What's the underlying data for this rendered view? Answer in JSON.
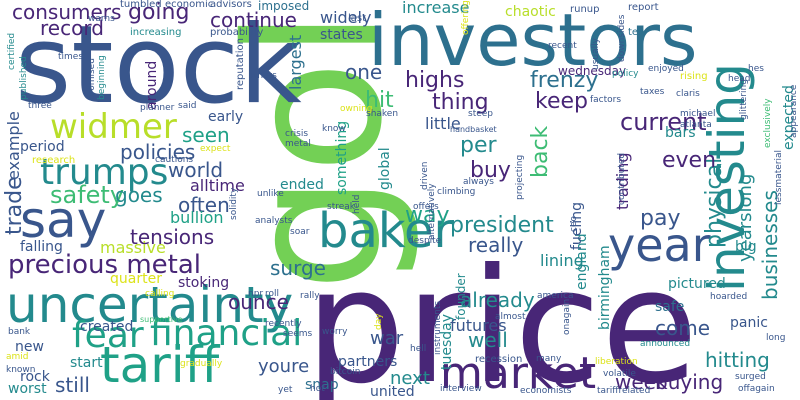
{
  "palette": {
    "dark-purple": "#482677",
    "navy": "#39568c",
    "blue": "#2d708e",
    "teal": "#238a8d",
    "sea-green": "#1fa187",
    "green": "#3dbc74",
    "light-green": "#73d055",
    "yellow-green": "#b8de29",
    "yellow": "#dce319"
  },
  "words": [
    {
      "id": "gold",
      "text": "gold",
      "color": "light-green"
    },
    {
      "id": "price",
      "text": "price",
      "color": "dark-purple"
    },
    {
      "id": "stock",
      "text": "stock",
      "color": "navy"
    },
    {
      "id": "investors",
      "text": "investors",
      "color": "blue"
    },
    {
      "id": "uncertainty",
      "text": "uncertainty",
      "color": "teal"
    },
    {
      "id": "tariff",
      "text": "tariff",
      "color": "sea-green"
    },
    {
      "id": "market",
      "text": "market",
      "color": "dark-purple"
    },
    {
      "id": "investing",
      "text": "investing",
      "color": "teal"
    },
    {
      "id": "baker",
      "text": "baker",
      "color": "teal"
    },
    {
      "id": "year",
      "text": "year",
      "color": "navy"
    },
    {
      "id": "say",
      "text": "say",
      "color": "navy"
    },
    {
      "id": "fear",
      "text": "fear",
      "color": "sea-green"
    },
    {
      "id": "financial",
      "text": "financial",
      "color": "sea-green"
    },
    {
      "id": "widmer",
      "text": "widmer",
      "color": "yellow-green"
    },
    {
      "id": "trumps",
      "text": "trumps",
      "color": "teal"
    },
    {
      "id": "precious-metal",
      "text": "precious metal",
      "color": "dark-purple"
    },
    {
      "id": "safety",
      "text": "safety",
      "color": "green"
    },
    {
      "id": "consumers",
      "text": "consumers",
      "color": "dark-purple"
    },
    {
      "id": "going",
      "text": "going",
      "color": "dark-purple"
    },
    {
      "id": "continue",
      "text": "continue",
      "color": "dark-purple"
    },
    {
      "id": "record",
      "text": "record",
      "color": "dark-purple"
    },
    {
      "id": "current",
      "text": "current",
      "color": "dark-purple"
    },
    {
      "id": "frenzy",
      "text": "frenzy",
      "color": "blue"
    },
    {
      "id": "keep",
      "text": "keep",
      "color": "dark-purple"
    },
    {
      "id": "highs",
      "text": "highs",
      "color": "dark-purple"
    },
    {
      "id": "hit",
      "text": "hit",
      "color": "green"
    },
    {
      "id": "one",
      "text": "one",
      "color": "navy"
    },
    {
      "id": "thing",
      "text": "thing",
      "color": "dark-purple"
    },
    {
      "id": "per",
      "text": "per",
      "color": "teal"
    },
    {
      "id": "back",
      "text": "back",
      "color": "green"
    },
    {
      "id": "buy",
      "text": "buy",
      "color": "dark-purple"
    },
    {
      "id": "seen",
      "text": "seen",
      "color": "sea-green"
    },
    {
      "id": "policies",
      "text": "policies",
      "color": "navy"
    },
    {
      "id": "world",
      "text": "world",
      "color": "navy"
    },
    {
      "id": "goes",
      "text": "goes",
      "color": "teal"
    },
    {
      "id": "often",
      "text": "often",
      "color": "navy"
    },
    {
      "id": "tensions",
      "text": "tensions",
      "color": "dark-purple"
    },
    {
      "id": "surge",
      "text": "surge",
      "color": "blue"
    },
    {
      "id": "president",
      "text": "president",
      "color": "teal"
    },
    {
      "id": "way",
      "text": "way",
      "color": "sea-green"
    },
    {
      "id": "pay",
      "text": "pay",
      "color": "navy"
    },
    {
      "id": "physical",
      "text": "physical",
      "color": "teal"
    },
    {
      "id": "even",
      "text": "even",
      "color": "dark-purple"
    },
    {
      "id": "trading",
      "text": "trading",
      "color": "dark-purple"
    },
    {
      "id": "yearslong",
      "text": "yearslong",
      "color": "teal"
    },
    {
      "id": "businesses",
      "text": "businesses",
      "color": "teal"
    },
    {
      "id": "really",
      "text": "really",
      "color": "navy"
    },
    {
      "id": "already",
      "text": "already",
      "color": "teal"
    },
    {
      "id": "well",
      "text": "well",
      "color": "teal"
    },
    {
      "id": "ounce",
      "text": "ounce",
      "color": "dark-purple"
    },
    {
      "id": "youre",
      "text": "youre",
      "color": "navy"
    },
    {
      "id": "still",
      "text": "still",
      "color": "navy"
    },
    {
      "id": "next",
      "text": "next",
      "color": "teal"
    },
    {
      "id": "week",
      "text": "week",
      "color": "dark-purple"
    },
    {
      "id": "buying",
      "text": "buying",
      "color": "dark-purple"
    },
    {
      "id": "come",
      "text": "come",
      "color": "navy"
    },
    {
      "id": "hitting",
      "text": "hitting",
      "color": "teal"
    },
    {
      "id": "futures",
      "text": "futures",
      "color": "navy"
    },
    {
      "id": "war",
      "text": "war",
      "color": "navy"
    },
    {
      "id": "trade",
      "text": "trade",
      "color": "navy"
    },
    {
      "id": "example",
      "text": "example",
      "color": "navy"
    },
    {
      "id": "massive",
      "text": "massive",
      "color": "yellow-green"
    },
    {
      "id": "falling",
      "text": "falling",
      "color": "navy"
    },
    {
      "id": "bullion",
      "text": "bullion",
      "color": "sea-green"
    },
    {
      "id": "alltime",
      "text": "alltime",
      "color": "dark-purple"
    },
    {
      "id": "increase",
      "text": "increase",
      "color": "teal"
    },
    {
      "id": "chaotic",
      "text": "chaotic",
      "color": "yellow-green"
    },
    {
      "id": "widely",
      "text": "widely",
      "color": "navy"
    },
    {
      "id": "states",
      "text": "states",
      "color": "navy"
    },
    {
      "id": "largest",
      "text": "largest",
      "color": "blue"
    },
    {
      "id": "around",
      "text": "around",
      "color": "dark-purple"
    },
    {
      "id": "early",
      "text": "early",
      "color": "navy"
    },
    {
      "id": "ended",
      "text": "ended",
      "color": "teal"
    },
    {
      "id": "something",
      "text": "something",
      "color": "sea-green"
    },
    {
      "id": "global",
      "text": "global",
      "color": "teal"
    },
    {
      "id": "lining",
      "text": "lining",
      "color": "teal"
    },
    {
      "id": "little",
      "text": "little",
      "color": "navy"
    },
    {
      "id": "period",
      "text": "period",
      "color": "navy"
    },
    {
      "id": "quarter",
      "text": "quarter",
      "color": "yellow"
    },
    {
      "id": "stoking",
      "text": "stoking",
      "color": "dark-purple"
    },
    {
      "id": "created",
      "text": "created",
      "color": "navy"
    },
    {
      "id": "new",
      "text": "new",
      "color": "navy"
    },
    {
      "id": "rock",
      "text": "rock",
      "color": "navy"
    },
    {
      "id": "start",
      "text": "start",
      "color": "teal"
    },
    {
      "id": "worst",
      "text": "worst",
      "color": "teal"
    },
    {
      "id": "partners",
      "text": "partners",
      "color": "navy"
    },
    {
      "id": "united",
      "text": "united",
      "color": "navy"
    },
    {
      "id": "snap",
      "text": "snap",
      "color": "blue"
    },
    {
      "id": "pictured",
      "text": "pictured",
      "color": "teal"
    },
    {
      "id": "panic",
      "text": "panic",
      "color": "navy"
    },
    {
      "id": "safe",
      "text": "safe",
      "color": "blue"
    },
    {
      "id": "big",
      "text": "big",
      "color": "teal"
    },
    {
      "id": "birmingham",
      "text": "birmingham",
      "color": "teal"
    },
    {
      "id": "england",
      "text": "england",
      "color": "teal"
    },
    {
      "id": "fueling",
      "text": "fueling",
      "color": "navy"
    },
    {
      "id": "tuesday",
      "text": "tuesday",
      "color": "teal"
    },
    {
      "id": "wednesday",
      "text": "wednesday",
      "color": "dark-purple"
    },
    {
      "id": "bars",
      "text": "bars",
      "color": "teal"
    },
    {
      "id": "founder",
      "text": "founder",
      "color": "teal"
    },
    {
      "id": "expected",
      "text": "expected",
      "color": "teal"
    },
    {
      "id": "imposed",
      "text": "imposed",
      "color": "blue"
    },
    {
      "id": "economic",
      "text": "economic",
      "color": "navy"
    },
    {
      "id": "advisors",
      "text": "advisors",
      "color": "navy"
    },
    {
      "id": "tumbled",
      "text": "tumbled",
      "color": "navy"
    },
    {
      "id": "warns",
      "text": "warns",
      "color": "navy"
    },
    {
      "id": "last",
      "text": "last",
      "color": "navy"
    },
    {
      "id": "runup",
      "text": "runup",
      "color": "navy"
    },
    {
      "id": "report",
      "text": "report",
      "color": "navy"
    },
    {
      "id": "tee",
      "text": "tee",
      "color": "blue"
    },
    {
      "id": "increasing",
      "text": "increasing",
      "color": "teal"
    },
    {
      "id": "probability",
      "text": "probability",
      "color": "navy"
    },
    {
      "id": "times",
      "text": "times",
      "color": "navy"
    },
    {
      "id": "certified",
      "text": "certified",
      "color": "teal"
    },
    {
      "id": "published",
      "text": "published",
      "color": "teal"
    },
    {
      "id": "promised",
      "text": "promised",
      "color": "navy"
    },
    {
      "id": "beginning",
      "text": "beginning",
      "color": "teal"
    },
    {
      "id": "reputation",
      "text": "reputation",
      "color": "navy"
    },
    {
      "id": "whats",
      "text": "whats",
      "color": "navy"
    },
    {
      "id": "planner",
      "text": "planner",
      "color": "navy"
    },
    {
      "id": "said",
      "text": "said",
      "color": "navy"
    },
    {
      "id": "three",
      "text": "three",
      "color": "navy"
    },
    {
      "id": "research",
      "text": "research",
      "color": "yellow"
    },
    {
      "id": "cautions",
      "text": "cautions",
      "color": "navy"
    },
    {
      "id": "expect",
      "text": "expect",
      "color": "yellow"
    },
    {
      "id": "crisis",
      "text": "crisis",
      "color": "navy"
    },
    {
      "id": "metal",
      "text": "metal",
      "color": "navy"
    },
    {
      "id": "know",
      "text": "know",
      "color": "navy"
    },
    {
      "id": "handbasket",
      "text": "handbasket",
      "color": "navy"
    },
    {
      "id": "steep",
      "text": "steep",
      "color": "navy"
    },
    {
      "id": "shaken",
      "text": "shaken",
      "color": "navy"
    },
    {
      "id": "owning",
      "text": "owning",
      "color": "yellow"
    },
    {
      "id": "recent",
      "text": "recent",
      "color": "navy"
    },
    {
      "id": "offering",
      "text": "offering",
      "color": "yellow"
    },
    {
      "id": "enjoyed",
      "text": "enjoyed",
      "color": "navy"
    },
    {
      "id": "policy",
      "text": "policy",
      "color": "teal"
    },
    {
      "id": "rising",
      "text": "rising",
      "color": "yellow"
    },
    {
      "id": "head",
      "text": "head",
      "color": "navy"
    },
    {
      "id": "hes",
      "text": "hes",
      "color": "navy"
    },
    {
      "id": "taxes",
      "text": "taxes",
      "color": "navy"
    },
    {
      "id": "factors",
      "text": "factors",
      "color": "navy"
    },
    {
      "id": "claris",
      "text": "claris",
      "color": "navy"
    },
    {
      "id": "michael",
      "text": "michael",
      "color": "navy"
    },
    {
      "id": "atlanta",
      "text": "atlanta",
      "color": "navy"
    },
    {
      "id": "glittering",
      "text": "glittering",
      "color": "navy"
    },
    {
      "id": "always",
      "text": "always",
      "color": "navy"
    },
    {
      "id": "climbing",
      "text": "climbing",
      "color": "navy"
    },
    {
      "id": "driven",
      "text": "driven",
      "color": "navy"
    },
    {
      "id": "projecting",
      "text": "projecting",
      "color": "navy"
    },
    {
      "id": "contributed",
      "text": "contributed",
      "color": "navy"
    },
    {
      "id": "streak",
      "text": "streak",
      "color": "navy"
    },
    {
      "id": "offers",
      "text": "offers",
      "color": "navy"
    },
    {
      "id": "despite",
      "text": "despite",
      "color": "navy"
    },
    {
      "id": "soar",
      "text": "soar",
      "color": "navy"
    },
    {
      "id": "analysts",
      "text": "analysts",
      "color": "navy"
    },
    {
      "id": "alternatively",
      "text": "alternatively",
      "color": "navy"
    },
    {
      "id": "held",
      "text": "held",
      "color": "navy"
    },
    {
      "id": "unlike",
      "text": "unlike",
      "color": "navy"
    },
    {
      "id": "solidity",
      "text": "solidity",
      "color": "navy"
    },
    {
      "id": "supportive",
      "text": "supportive",
      "color": "green"
    },
    {
      "id": "calling",
      "text": "calling",
      "color": "yellow"
    },
    {
      "id": "npr",
      "text": "npr",
      "color": "navy"
    },
    {
      "id": "roll",
      "text": "roll",
      "color": "navy"
    },
    {
      "id": "rally",
      "text": "rally",
      "color": "navy"
    },
    {
      "id": "recently",
      "text": "recently",
      "color": "navy"
    },
    {
      "id": "seems",
      "text": "seems",
      "color": "navy"
    },
    {
      "id": "worry",
      "text": "worry",
      "color": "navy"
    },
    {
      "id": "gradually",
      "text": "gradually",
      "color": "yellow"
    },
    {
      "id": "bitcoin",
      "text": "bitcoin",
      "color": "navy"
    },
    {
      "id": "hot",
      "text": "hot",
      "color": "navy"
    },
    {
      "id": "yet",
      "text": "yet",
      "color": "navy"
    },
    {
      "id": "hell",
      "text": "hell",
      "color": "navy"
    },
    {
      "id": "instruments",
      "text": "instruments",
      "color": "navy"
    },
    {
      "id": "interview",
      "text": "interview",
      "color": "navy"
    },
    {
      "id": "recession",
      "text": "recession",
      "color": "navy"
    },
    {
      "id": "many",
      "text": "many",
      "color": "navy"
    },
    {
      "id": "economists",
      "text": "economists",
      "color": "navy"
    },
    {
      "id": "liberation",
      "text": "liberation",
      "color": "yellow"
    },
    {
      "id": "volatile",
      "text": "volatile",
      "color": "navy"
    },
    {
      "id": "tarifrelated",
      "text": "tariffrelated",
      "color": "navy"
    },
    {
      "id": "surged",
      "text": "surged",
      "color": "navy"
    },
    {
      "id": "offagain",
      "text": "offagain",
      "color": "navy"
    },
    {
      "id": "long",
      "text": "long",
      "color": "navy"
    },
    {
      "id": "onagain",
      "text": "onagain",
      "color": "navy"
    },
    {
      "id": "america",
      "text": "america",
      "color": "navy"
    },
    {
      "id": "almost",
      "text": "almost",
      "color": "navy"
    },
    {
      "id": "announced",
      "text": "announced",
      "color": "teal"
    },
    {
      "id": "hoarded",
      "text": "hoarded",
      "color": "navy"
    },
    {
      "id": "day",
      "text": "day",
      "color": "yellow"
    },
    {
      "id": "ceo",
      "text": "ceo",
      "color": "navy"
    },
    {
      "id": "usually",
      "text": "usually",
      "color": "navy"
    },
    {
      "id": "downsides",
      "text": "downsides",
      "color": "navy"
    },
    {
      "id": "amid",
      "text": "amid",
      "color": "yellow"
    },
    {
      "id": "bank",
      "text": "bank",
      "color": "navy"
    },
    {
      "id": "known",
      "text": "known",
      "color": "navy"
    },
    {
      "id": "lessmaterial",
      "text": "lessmaterial",
      "color": "navy"
    },
    {
      "id": "appearance",
      "text": "appearance",
      "color": "navy"
    },
    {
      "id": "exclusively",
      "text": "exclusively",
      "color": "green"
    }
  ]
}
